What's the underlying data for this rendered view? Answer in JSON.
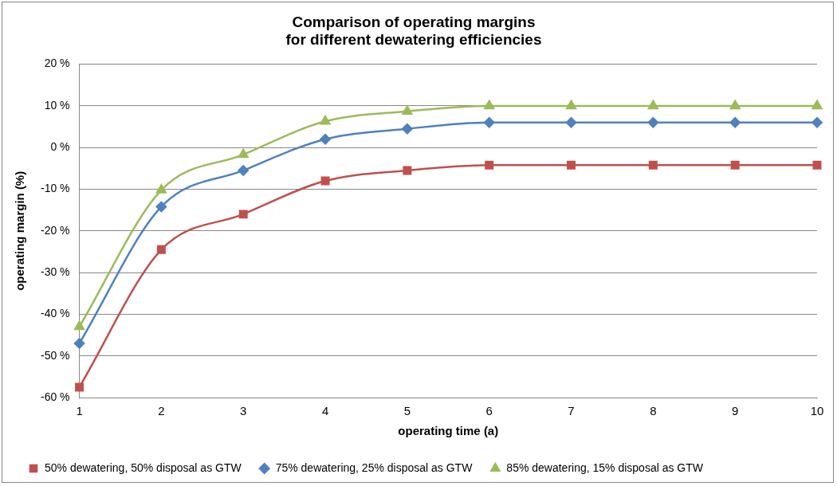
{
  "chart_data": {
    "type": "line",
    "title": "Comparison of operating margins\nfor different dewatering efficiencies",
    "xlabel": "operating time (a)",
    "ylabel": "operating margin (%)",
    "categories": [
      "1",
      "2",
      "3",
      "4",
      "5",
      "6",
      "7",
      "8",
      "9",
      "10"
    ],
    "series": [
      {
        "name": "50% dewatering, 50% disposal as GTW",
        "color": "#c0504d",
        "marker": "square",
        "values": [
          -57.5,
          -24.5,
          -16,
          -8,
          -5.5,
          -4.2,
          -4.2,
          -4.2,
          -4.2,
          -4.2
        ]
      },
      {
        "name": "75% dewatering, 25% disposal as GTW",
        "color": "#4f81bd",
        "marker": "diamond",
        "values": [
          -47,
          -14.2,
          -5.5,
          2,
          4.5,
          6,
          6,
          6,
          6,
          6
        ]
      },
      {
        "name": "85% dewatering, 15% disposal as GTW",
        "color": "#9bbb59",
        "marker": "triangle",
        "values": [
          -43,
          -10.2,
          -1.7,
          6.3,
          8.7,
          10,
          10,
          10,
          10,
          10
        ]
      }
    ],
    "ylim": [
      -60,
      20
    ],
    "yticks": [
      {
        "value": -60,
        "label": "-60 %"
      },
      {
        "value": -50,
        "label": "-50 %"
      },
      {
        "value": -40,
        "label": "-40 %"
      },
      {
        "value": -30,
        "label": "-30 %"
      },
      {
        "value": -20,
        "label": "-20 %"
      },
      {
        "value": -10,
        "label": "-10 %"
      },
      {
        "value": 0,
        "label": "0 %"
      },
      {
        "value": 10,
        "label": "10 %"
      },
      {
        "value": 20,
        "label": "20 %"
      }
    ],
    "grid": "y",
    "legend": "bottom"
  }
}
